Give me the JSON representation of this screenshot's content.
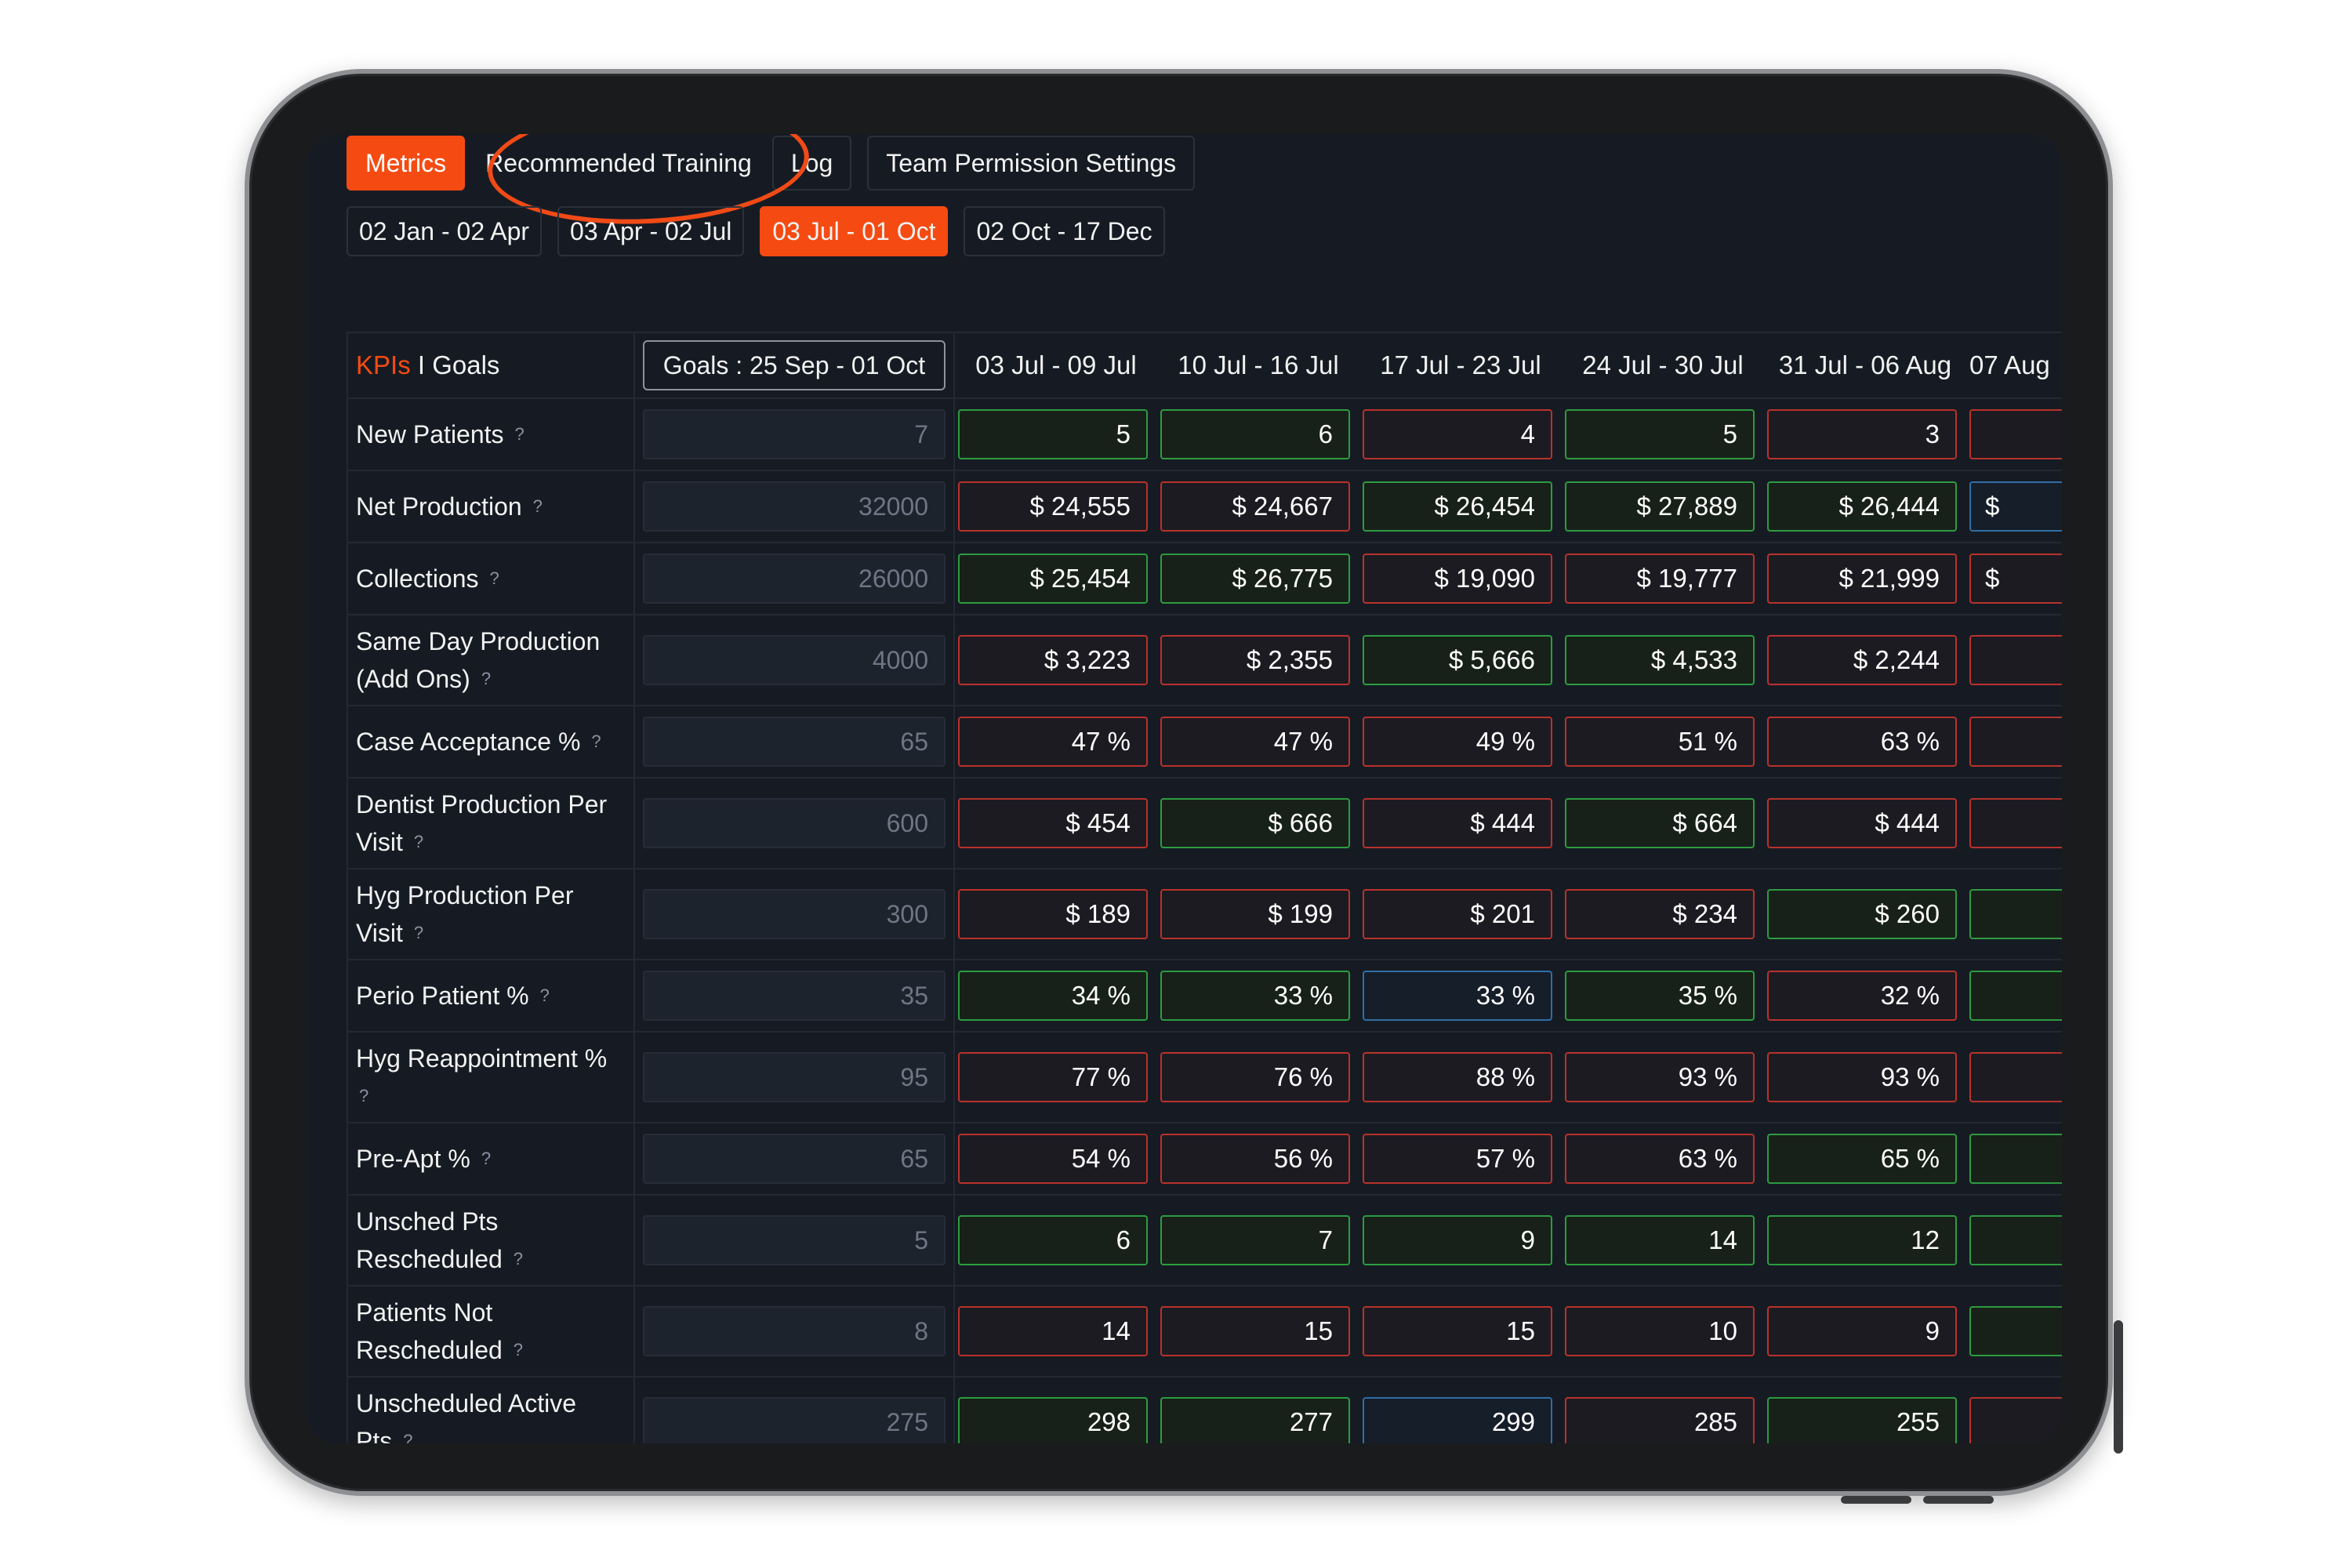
{
  "tabs": [
    {
      "label": "Metrics",
      "active": true
    },
    {
      "label": "Recommended Training",
      "active": false
    },
    {
      "label": "Log",
      "active": false
    },
    {
      "label": "Team Permission Settings",
      "active": false
    }
  ],
  "periods": [
    {
      "label": "02 Jan - 02 Apr",
      "active": false
    },
    {
      "label": "03 Apr - 02 Jul",
      "active": false
    },
    {
      "label": "03 Jul - 01 Oct",
      "active": true
    },
    {
      "label": "02 Oct - 17 Dec",
      "active": false
    }
  ],
  "table": {
    "header_kpis": "KPIs",
    "header_sep": " I ",
    "header_goals": "Goals",
    "goals_header": "Goals : 25 Sep - 01 Oct",
    "weeks": [
      "03 Jul - 09 Jul",
      "10 Jul - 16 Jul",
      "17 Jul - 23 Jul",
      "24 Jul - 30 Jul",
      "31 Jul - 06 Aug",
      "07 Aug"
    ],
    "help_icon": "?",
    "colors": {
      "red": "#b8322c",
      "green": "#2d9b41",
      "blue": "#2f6ea6",
      "accent": "#f54b12"
    },
    "rows": [
      {
        "label": [
          "New Patients"
        ],
        "goal": "7",
        "values": [
          "5",
          "6",
          "4",
          "5",
          "3",
          ""
        ],
        "status": [
          "g",
          "g",
          "r",
          "g",
          "r",
          "r"
        ]
      },
      {
        "label": [
          "Net Production"
        ],
        "goal": "32000",
        "values": [
          "$ 24,555",
          "$ 24,667",
          "$ 26,454",
          "$ 27,889",
          "$ 26,444",
          "$"
        ],
        "status": [
          "r",
          "r",
          "g",
          "g",
          "g",
          "b"
        ]
      },
      {
        "label": [
          "Collections"
        ],
        "goal": "26000",
        "values": [
          "$ 25,454",
          "$ 26,775",
          "$ 19,090",
          "$ 19,777",
          "$ 21,999",
          "$"
        ],
        "status": [
          "g",
          "g",
          "r",
          "r",
          "r",
          "r"
        ]
      },
      {
        "label": [
          "Same Day Production",
          "(Add Ons)"
        ],
        "goal": "4000",
        "values": [
          "$ 3,223",
          "$ 2,355",
          "$ 5,666",
          "$ 4,533",
          "$ 2,244",
          ""
        ],
        "status": [
          "r",
          "r",
          "g",
          "g",
          "r",
          "r"
        ]
      },
      {
        "label": [
          "Case Acceptance %"
        ],
        "goal": "65",
        "values": [
          "47 %",
          "47 %",
          "49 %",
          "51 %",
          "63 %",
          ""
        ],
        "status": [
          "r",
          "r",
          "r",
          "r",
          "r",
          "r"
        ]
      },
      {
        "label": [
          "Dentist Production Per",
          "Visit"
        ],
        "goal": "600",
        "values": [
          "$ 454",
          "$ 666",
          "$ 444",
          "$ 664",
          "$ 444",
          ""
        ],
        "status": [
          "r",
          "g",
          "r",
          "g",
          "r",
          "r"
        ]
      },
      {
        "label": [
          "Hyg Production Per",
          "Visit"
        ],
        "goal": "300",
        "values": [
          "$ 189",
          "$ 199",
          "$ 201",
          "$ 234",
          "$ 260",
          ""
        ],
        "status": [
          "r",
          "r",
          "r",
          "r",
          "g",
          "g"
        ]
      },
      {
        "label": [
          "Perio Patient %"
        ],
        "goal": "35",
        "values": [
          "34 %",
          "33 %",
          "33 %",
          "35 %",
          "32 %",
          ""
        ],
        "status": [
          "g",
          "g",
          "b",
          "g",
          "r",
          "g"
        ]
      },
      {
        "label": [
          "Hyg Reappointment %",
          ""
        ],
        "goal": "95",
        "values": [
          "77 %",
          "76 %",
          "88 %",
          "93 %",
          "93 %",
          ""
        ],
        "status": [
          "r",
          "r",
          "r",
          "r",
          "r",
          "r"
        ]
      },
      {
        "label": [
          "Pre-Apt %"
        ],
        "goal": "65",
        "values": [
          "54 %",
          "56 %",
          "57 %",
          "63 %",
          "65 %",
          ""
        ],
        "status": [
          "r",
          "r",
          "r",
          "r",
          "g",
          "g"
        ]
      },
      {
        "label": [
          "Unsched Pts",
          "Rescheduled"
        ],
        "goal": "5",
        "values": [
          "6",
          "7",
          "9",
          "14",
          "12",
          ""
        ],
        "status": [
          "g",
          "g",
          "g",
          "g",
          "g",
          "g"
        ]
      },
      {
        "label": [
          "Patients Not",
          "Rescheduled"
        ],
        "goal": "8",
        "values": [
          "14",
          "15",
          "15",
          "10",
          "9",
          ""
        ],
        "status": [
          "r",
          "r",
          "r",
          "r",
          "r",
          "g"
        ]
      },
      {
        "label": [
          "Unscheduled Active",
          "Pts"
        ],
        "goal": "275",
        "values": [
          "298",
          "277",
          "299",
          "285",
          "255",
          ""
        ],
        "status": [
          "g",
          "g",
          "b",
          "r",
          "g",
          "r"
        ]
      }
    ]
  }
}
